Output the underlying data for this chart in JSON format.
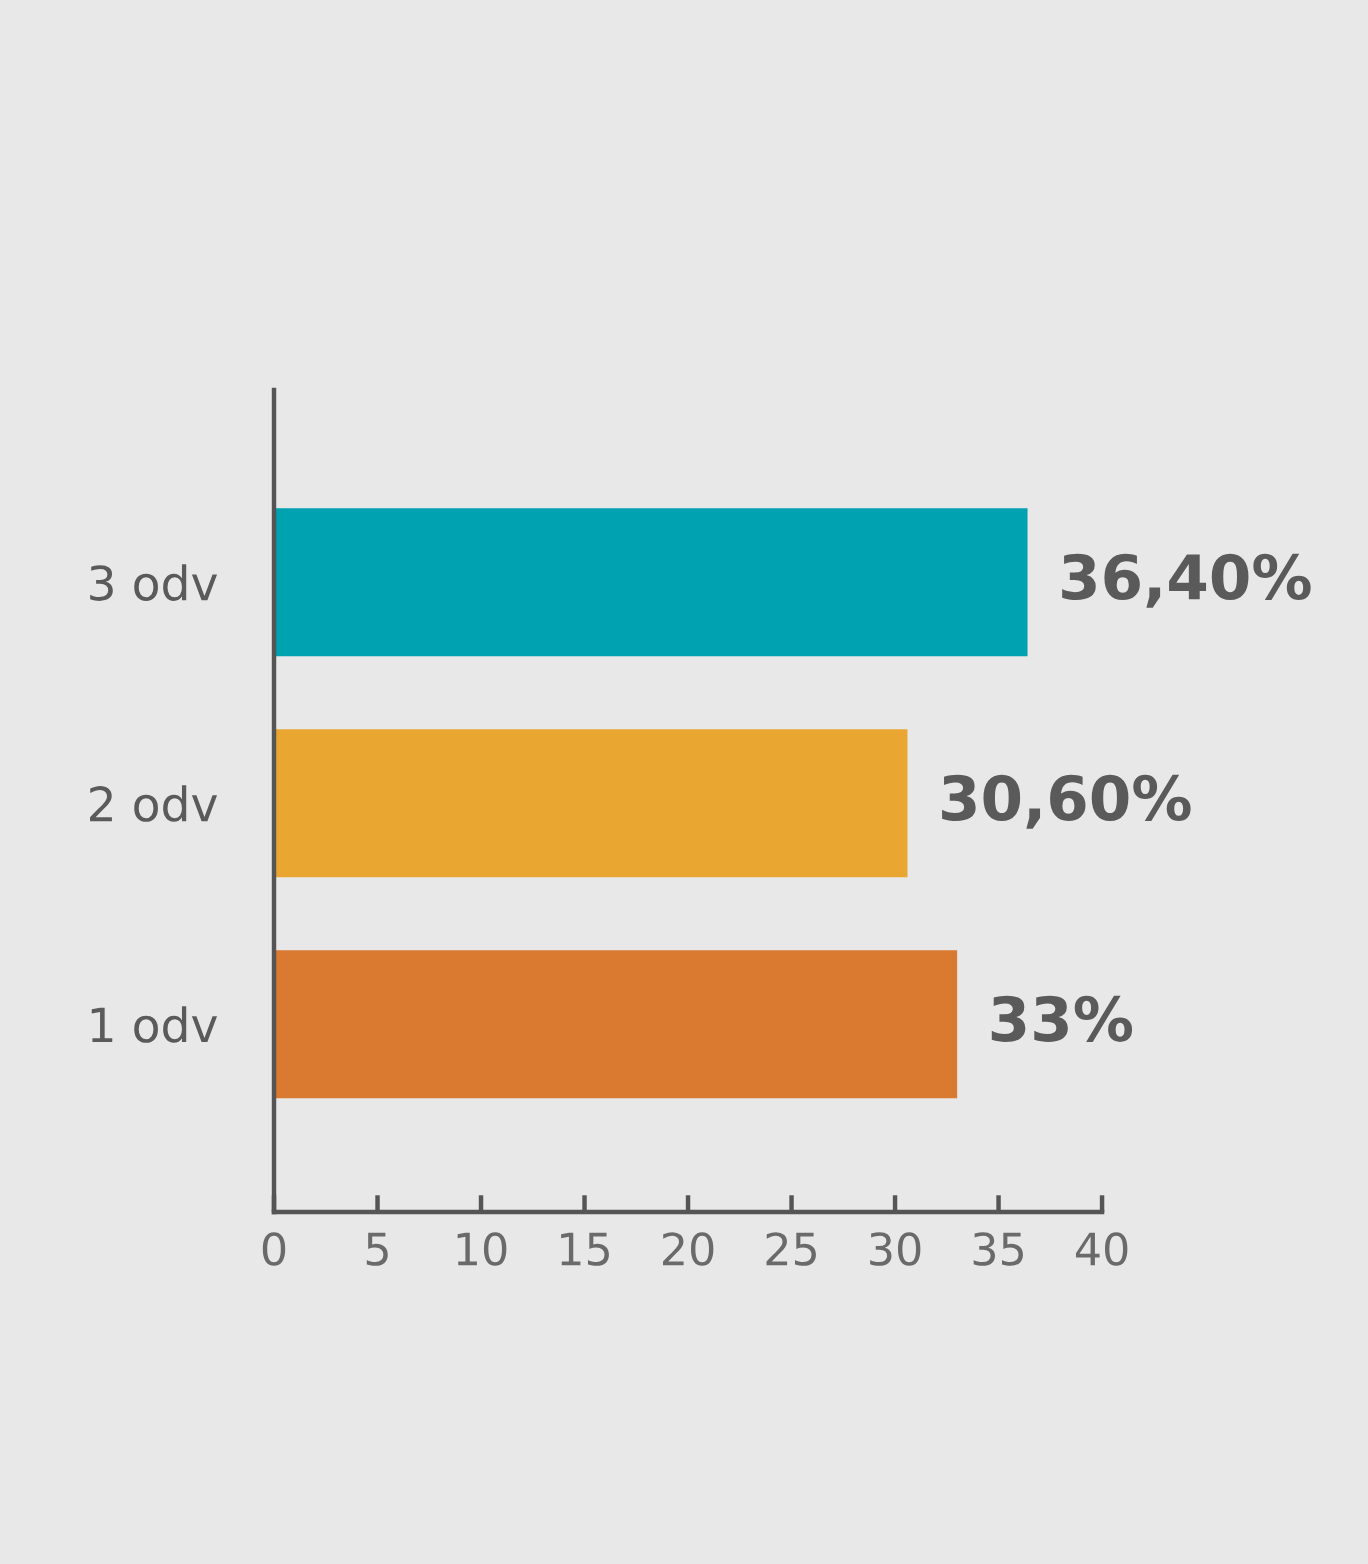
{
  "chart_data": {
    "type": "bar",
    "orientation": "horizontal",
    "categories": [
      "3 odv",
      "2 odv",
      "1 odv"
    ],
    "values": [
      36.4,
      30.6,
      33
    ],
    "colors": [
      "#00a1b1",
      "#e9a631",
      "#d97a30"
    ],
    "value_labels": [
      "36,40%",
      "30,60%",
      "33%"
    ],
    "xlim": [
      0,
      40
    ],
    "xticks": [
      0,
      5,
      10,
      15,
      20,
      25,
      30,
      35,
      40
    ]
  }
}
